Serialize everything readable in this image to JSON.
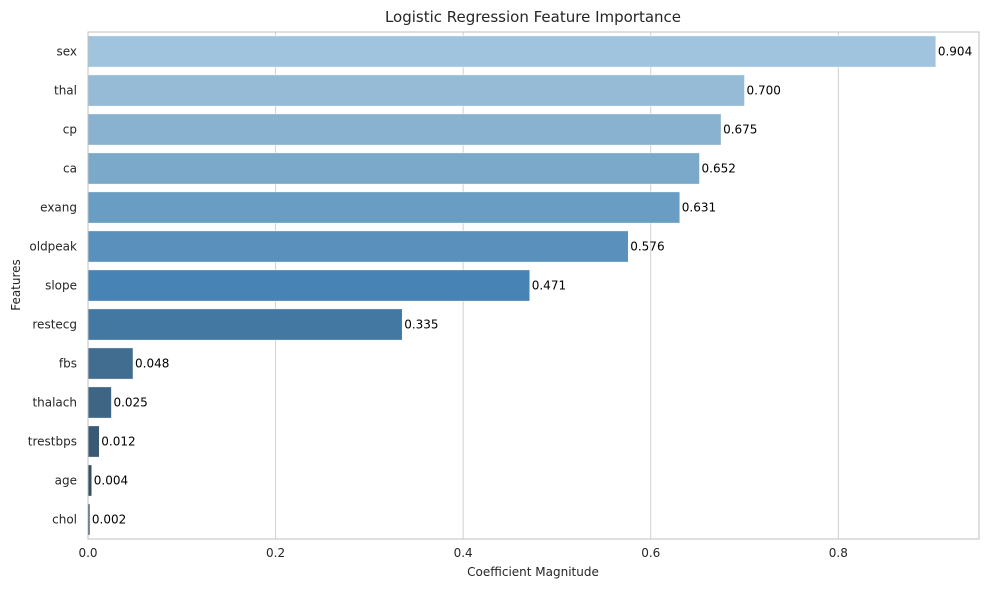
{
  "chart_data": {
    "type": "bar",
    "orientation": "horizontal",
    "title": "Logistic Regression Feature Importance",
    "xlabel": "Coefficient Magnitude",
    "ylabel": "Features",
    "xlim": [
      0,
      0.95
    ],
    "xticks": [
      0.0,
      0.2,
      0.4,
      0.6,
      0.8
    ],
    "xtick_labels": [
      "0.0",
      "0.2",
      "0.4",
      "0.6",
      "0.8"
    ],
    "grid": true,
    "categories": [
      "sex",
      "thal",
      "cp",
      "ca",
      "exang",
      "oldpeak",
      "slope",
      "restecg",
      "fbs",
      "thalach",
      "trestbps",
      "age",
      "chol"
    ],
    "values": [
      0.904,
      0.7,
      0.675,
      0.652,
      0.631,
      0.576,
      0.471,
      0.335,
      0.048,
      0.025,
      0.012,
      0.004,
      0.002
    ],
    "value_labels": [
      "0.904",
      "0.700",
      "0.675",
      "0.652",
      "0.631",
      "0.576",
      "0.471",
      "0.335",
      "0.048",
      "0.025",
      "0.012",
      "0.004",
      "0.002"
    ],
    "colors": [
      "#a0c4de",
      "#95bbd7",
      "#88b2cf",
      "#7aa9ca",
      "#6a9dc4",
      "#5990bc",
      "#4784b5",
      "#4278a1",
      "#416d90",
      "#3e6583",
      "#395a74",
      "#354f63",
      "#314455"
    ]
  }
}
